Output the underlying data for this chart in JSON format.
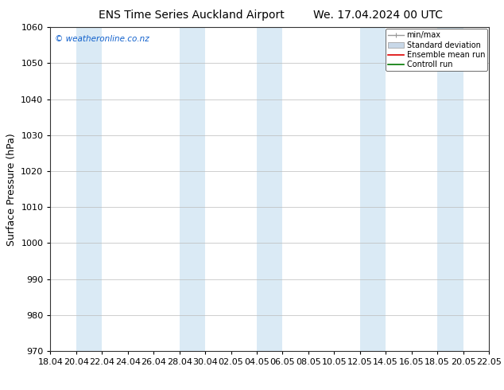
{
  "title_left": "ENS Time Series Auckland Airport",
  "title_right": "We. 17.04.2024 00 UTC",
  "ylabel": "Surface Pressure (hPa)",
  "ylim": [
    970,
    1060
  ],
  "yticks": [
    970,
    980,
    990,
    1000,
    1010,
    1020,
    1030,
    1040,
    1050,
    1060
  ],
  "xtick_labels": [
    "18.04",
    "20.04",
    "22.04",
    "24.04",
    "26.04",
    "28.04",
    "30.04",
    "02.05",
    "04.05",
    "06.05",
    "08.05",
    "10.05",
    "12.05",
    "14.05",
    "16.05",
    "18.05",
    "20.05",
    "22.05"
  ],
  "watermark": "© weatheronline.co.nz",
  "legend_items": [
    "min/max",
    "Standard deviation",
    "Ensemble mean run",
    "Controll run"
  ],
  "legend_colors": [
    "#999999",
    "#c8d8e8",
    "#dd0000",
    "#007700"
  ],
  "band_indices": [
    1,
    5,
    8,
    12,
    15
  ],
  "band_color": "#daeaf5",
  "bg_color": "#ffffff",
  "plot_bg_color": "#ffffff",
  "grid_color": "#bbbbbb",
  "title_fontsize": 10,
  "tick_fontsize": 8,
  "ylabel_fontsize": 9
}
